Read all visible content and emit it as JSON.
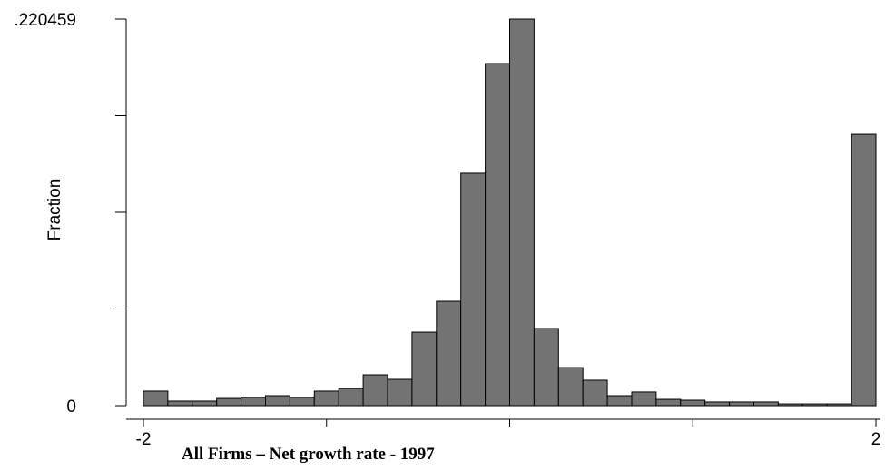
{
  "chart_data": {
    "type": "histogram",
    "title": "All Firms – Net growth rate - 1997",
    "y_label": "Fraction",
    "bins": [
      -2,
      -1.8667,
      -1.7333,
      -1.6,
      -1.4667,
      -1.3333,
      -1.2,
      -1.0667,
      -0.9333,
      -0.8,
      -0.6667,
      -0.5333,
      -0.4,
      -0.2667,
      -0.1333,
      0,
      0.1333,
      0.2667,
      0.4,
      0.5333,
      0.6667,
      0.8,
      0.9333,
      1.0667,
      1.2,
      1.3333,
      1.4667,
      1.6,
      1.7333,
      1.8667,
      2
    ],
    "values": [
      0.0083,
      0.0026,
      0.0026,
      0.0041,
      0.0047,
      0.0057,
      0.0047,
      0.0083,
      0.0098,
      0.0176,
      0.015,
      0.0419,
      0.0595,
      0.1325,
      0.1951,
      0.220459,
      0.044,
      0.0217,
      0.0145,
      0.0057,
      0.0078,
      0.0036,
      0.0031,
      0.0021,
      0.0021,
      0.0021,
      0.001,
      0.001,
      0.001,
      0.1547
    ],
    "color": "#737373",
    "xlim": [
      -2,
      2
    ],
    "xticks": [
      -2,
      2
    ],
    "xminor_ticks": [
      -1,
      0,
      1
    ],
    "ylim": [
      0,
      0.220459
    ],
    "yticks": [
      0,
      {
        "value": 0.220459,
        "label": ".220459"
      }
    ],
    "yminor_ticks": [
      0.055115,
      0.11023,
      0.165344
    ]
  }
}
